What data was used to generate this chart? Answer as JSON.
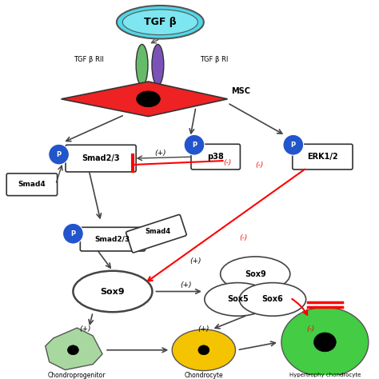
{
  "bg_color": "#ffffff",
  "blue_circle_color": "#2255cc",
  "tgf_label": "TGF β",
  "msc_label": "MSC",
  "smad23_label": "Smad2/3",
  "smad4_label": "Smad4",
  "p38_label": "p38",
  "erk_label": "ERK1/2",
  "sox9_label": "Sox9",
  "sox5_label": "Sox5",
  "sox6_label": "Sox6",
  "p_label": "P",
  "plus_label": "(+)",
  "minus_label": "(-)",
  "chondroprog_label": "Chondroprogenitor",
  "chondrocyte_label": "Chondrocyte",
  "hypertrophy_label": "Hypertrophy chondrocyte",
  "tgf_rii_label": "TGF β RII",
  "tgf_ri_label": "TGF β RI"
}
